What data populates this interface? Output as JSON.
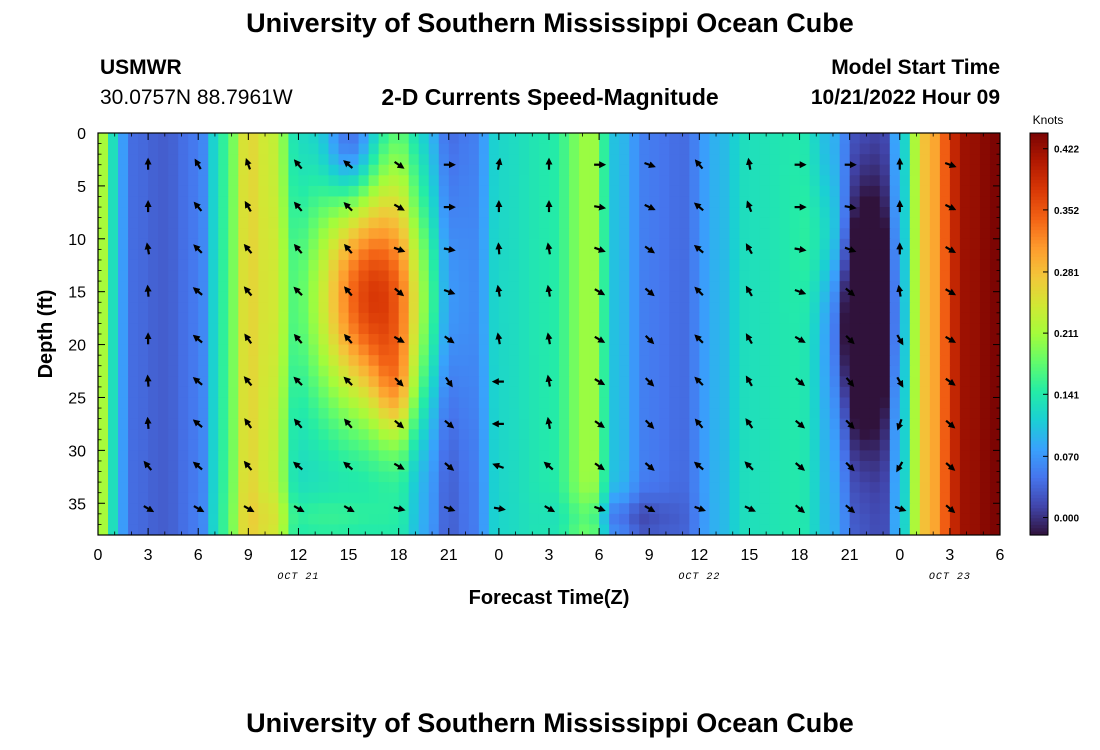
{
  "header": {
    "title": "University of Southern Mississippi Ocean Cube",
    "station": "USMWR",
    "coordinates": "30.0757N  88.7961W",
    "subtitle": "2-D Currents Speed-Magnitude",
    "model_start_label": "Model Start Time",
    "model_start_value": "10/21/2022 Hour 09"
  },
  "footer": {
    "title": "University of Southern Mississippi Ocean Cube"
  },
  "chart_data": {
    "type": "heatmap",
    "title": "2-D Currents Speed-Magnitude",
    "xlabel": "Forecast Time(Z)",
    "ylabel": "Depth (ft)",
    "x_tick_labels": [
      "0",
      "3",
      "6",
      "9",
      "12",
      "15",
      "18",
      "21",
      "0",
      "3",
      "6",
      "9",
      "12",
      "15",
      "18",
      "21",
      "0",
      "3",
      "6"
    ],
    "x_range_hours": [
      0,
      54
    ],
    "date_labels": [
      {
        "text": "OCT 21",
        "hour": 12
      },
      {
        "text": "OCT 22",
        "hour": 36
      },
      {
        "text": "OCT 23",
        "hour": 51
      }
    ],
    "y_ticks": [
      0,
      5,
      10,
      15,
      20,
      25,
      30,
      35
    ],
    "ylim": [
      0,
      38
    ],
    "colorbar": {
      "label": "Knots",
      "ticks": [
        "0.422",
        "0.352",
        "0.281",
        "0.211",
        "0.141",
        "0.070",
        "0.000"
      ],
      "range": [
        -0.02,
        0.44
      ]
    },
    "colormap": [
      "#30123b",
      "#4145ab",
      "#4675ed",
      "#39a2fc",
      "#1bcfd4",
      "#24eca6",
      "#61fc6c",
      "#a4fc3b",
      "#d1e834",
      "#f3c63a",
      "#fe9b2d",
      "#f36315",
      "#d93806",
      "#b11901",
      "#7a0403"
    ],
    "arrow_hours": [
      3,
      6,
      9,
      12,
      15,
      18,
      21,
      24,
      27,
      30,
      33,
      36,
      39,
      42,
      45,
      48,
      51
    ],
    "arrow_depths": [
      3,
      7,
      11,
      15,
      19.5,
      23.5,
      27.5,
      31.5,
      35.5
    ],
    "arrow_angles_deg": [
      [
        90,
        120,
        110,
        130,
        140,
        -35,
        0,
        80,
        90,
        0,
        -20,
        130,
        100,
        0,
        0,
        90,
        -20
      ],
      [
        90,
        130,
        120,
        130,
        135,
        -30,
        0,
        90,
        90,
        -10,
        -25,
        140,
        110,
        0,
        -10,
        90,
        -25
      ],
      [
        100,
        135,
        130,
        130,
        130,
        -20,
        -10,
        95,
        100,
        -20,
        -35,
        140,
        120,
        -10,
        -20,
        90,
        -30
      ],
      [
        95,
        140,
        130,
        135,
        130,
        -40,
        -20,
        100,
        100,
        -30,
        -40,
        135,
        120,
        -20,
        -40,
        100,
        -30
      ],
      [
        90,
        140,
        125,
        130,
        130,
        -30,
        -35,
        100,
        100,
        -30,
        -45,
        135,
        120,
        -30,
        -45,
        -60,
        -30
      ],
      [
        95,
        140,
        130,
        135,
        135,
        -45,
        -55,
        180,
        100,
        -30,
        -45,
        135,
        120,
        -40,
        -50,
        -60,
        -35
      ],
      [
        95,
        140,
        125,
        130,
        130,
        -40,
        -40,
        180,
        100,
        -35,
        -45,
        130,
        125,
        -40,
        -45,
        -110,
        -40
      ],
      [
        130,
        140,
        130,
        140,
        140,
        -30,
        -40,
        160,
        140,
        -35,
        -40,
        140,
        135,
        -40,
        -45,
        -120,
        -40
      ],
      [
        -30,
        -30,
        -30,
        -30,
        -30,
        -15,
        -20,
        -10,
        -30,
        -20,
        -30,
        -20,
        -25,
        -40,
        -40,
        -20,
        -40
      ]
    ],
    "speed_model": {
      "unit": "knots",
      "base_by_hour": [
        {
          "hour": 0,
          "value": 0.25
        },
        {
          "hour": 0.8,
          "value": 0.13
        },
        {
          "hour": 2,
          "value": 0.04
        },
        {
          "hour": 4,
          "value": 0.03
        },
        {
          "hour": 6,
          "value": 0.05
        },
        {
          "hour": 7.5,
          "value": 0.15
        },
        {
          "hour": 9,
          "value": 0.26
        },
        {
          "hour": 10.5,
          "value": 0.23
        },
        {
          "hour": 12,
          "value": 0.12
        },
        {
          "hour": 13.5,
          "value": 0.12
        },
        {
          "hour": 15.5,
          "value": 0.12
        },
        {
          "hour": 18,
          "value": 0.13
        },
        {
          "hour": 19.5,
          "value": 0.08
        },
        {
          "hour": 21,
          "value": 0.03
        },
        {
          "hour": 22.5,
          "value": 0.05
        },
        {
          "hour": 24,
          "value": 0.12
        },
        {
          "hour": 27,
          "value": 0.14
        },
        {
          "hour": 29.5,
          "value": 0.21
        },
        {
          "hour": 31,
          "value": 0.1
        },
        {
          "hour": 33,
          "value": 0.05
        },
        {
          "hour": 35,
          "value": 0.04
        },
        {
          "hour": 37,
          "value": 0.09
        },
        {
          "hour": 39,
          "value": 0.13
        },
        {
          "hour": 42,
          "value": 0.14
        },
        {
          "hour": 44,
          "value": 0.09
        },
        {
          "hour": 45.5,
          "value": 0.03
        },
        {
          "hour": 47,
          "value": 0.02
        },
        {
          "hour": 48,
          "value": 0.1
        },
        {
          "hour": 49.5,
          "value": 0.28
        },
        {
          "hour": 52,
          "value": 0.42
        },
        {
          "hour": 54,
          "value": 0.44
        }
      ],
      "features": [
        {
          "hour": 16.5,
          "depth": 15.5,
          "hour_radius": 3.5,
          "depth_radius": 11,
          "amount": 0.25
        },
        {
          "hour": 45.8,
          "depth": 17,
          "hour_radius": 1.6,
          "depth_radius": 11,
          "amount": -0.14
        },
        {
          "hour": 15.2,
          "depth": 1,
          "hour_radius": 1.6,
          "depth_radius": 6,
          "amount": -0.11
        },
        {
          "hour": 17.8,
          "depth": 24.5,
          "hour_radius": 1.2,
          "depth_radius": 5,
          "amount": 0.07
        },
        {
          "hour": 18.3,
          "depth": 2,
          "hour_radius": 2.5,
          "depth_radius": 6,
          "amount": 0.02
        },
        {
          "hour": 13.5,
          "depth": 36.5,
          "hour_radius": 4,
          "depth_radius": 2.5,
          "amount": 0.03
        },
        {
          "hour": 31,
          "depth": 36.5,
          "hour_radius": 3,
          "depth_radius": 2.2,
          "amount": -0.05
        },
        {
          "hour": 44,
          "depth": 10,
          "hour_radius": 1.5,
          "depth_radius": 6,
          "amount": 0.04
        }
      ]
    }
  }
}
